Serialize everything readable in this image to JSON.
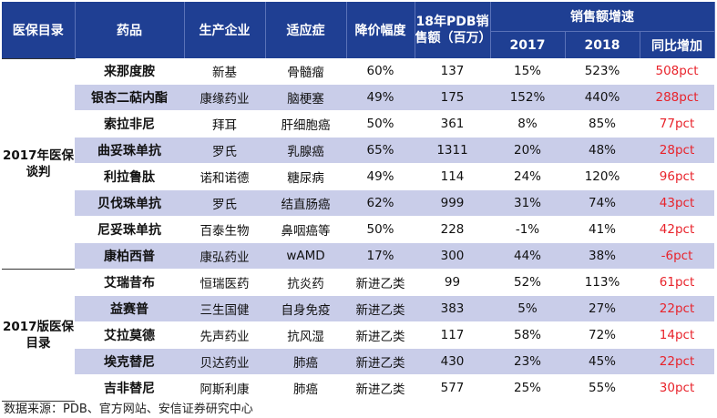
{
  "header": {
    "category": "医保目录",
    "drug": "药品",
    "company": "生产企业",
    "indication": "适应症",
    "price_cut": "降价幅度",
    "sales_line1": "18年PDB销",
    "sales_line2": "售额（百万）",
    "growth_group": "销售额增速",
    "y2017": "2017",
    "y2018": "2018",
    "yoy": "同比增加"
  },
  "groups": [
    {
      "label_line1": "2017年医保",
      "label_line2": "谈判"
    },
    {
      "label_line1": "2017版医保",
      "label_line2": "目录"
    }
  ],
  "rows": [
    {
      "drug": "来那度胺",
      "company": "新基",
      "indication": "骨髓瘤",
      "cut": "60%",
      "sales": "137",
      "g2017": "15%",
      "g2018": "523%",
      "yoy": "508pct"
    },
    {
      "drug": "银杏二萜内酯",
      "company": "康缘药业",
      "indication": "脑梗塞",
      "cut": "49%",
      "sales": "175",
      "g2017": "152%",
      "g2018": "440%",
      "yoy": "288pct"
    },
    {
      "drug": "索拉非尼",
      "company": "拜耳",
      "indication": "肝细胞癌",
      "cut": "50%",
      "sales": "361",
      "g2017": "8%",
      "g2018": "85%",
      "yoy": "77pct"
    },
    {
      "drug": "曲妥珠单抗",
      "company": "罗氏",
      "indication": "乳腺癌",
      "cut": "65%",
      "sales": "1311",
      "g2017": "20%",
      "g2018": "48%",
      "yoy": "28pct"
    },
    {
      "drug": "利拉鲁肽",
      "company": "诺和诺德",
      "indication": "糖尿病",
      "cut": "49%",
      "sales": "114",
      "g2017": "24%",
      "g2018": "120%",
      "yoy": "96pct"
    },
    {
      "drug": "贝伐珠单抗",
      "company": "罗氏",
      "indication": "结直肠癌",
      "cut": "62%",
      "sales": "999",
      "g2017": "31%",
      "g2018": "74%",
      "yoy": "43pct"
    },
    {
      "drug": "尼妥珠单抗",
      "company": "百泰生物",
      "indication": "鼻咽癌等",
      "cut": "50%",
      "sales": "228",
      "g2017": "-1%",
      "g2018": "41%",
      "yoy": "42pct"
    },
    {
      "drug": "康柏西普",
      "company": "康弘药业",
      "indication": "wAMD",
      "cut": "17%",
      "sales": "300",
      "g2017": "44%",
      "g2018": "38%",
      "yoy": "-6pct"
    },
    {
      "drug": "艾瑞昔布",
      "company": "恒瑞医药",
      "indication": "抗炎药",
      "cut": "新进乙类",
      "sales": "99",
      "g2017": "52%",
      "g2018": "113%",
      "yoy": "61pct"
    },
    {
      "drug": "益赛普",
      "company": "三生国健",
      "indication": "自身免疫",
      "cut": "新进乙类",
      "sales": "383",
      "g2017": "5%",
      "g2018": "27%",
      "yoy": "22pct"
    },
    {
      "drug": "艾拉莫德",
      "company": "先声药业",
      "indication": "抗风湿",
      "cut": "新进乙类",
      "sales": "117",
      "g2017": "58%",
      "g2018": "72%",
      "yoy": "14pct"
    },
    {
      "drug": "埃克替尼",
      "company": "贝达药业",
      "indication": "肺癌",
      "cut": "新进乙类",
      "sales": "430",
      "g2017": "23%",
      "g2018": "45%",
      "yoy": "22pct"
    },
    {
      "drug": "吉非替尼",
      "company": "阿斯利康",
      "indication": "肺癌",
      "cut": "新进乙类",
      "sales": "577",
      "g2017": "25%",
      "g2018": "55%",
      "yoy": "30pct"
    }
  ],
  "footer": "数据来源：PDB、官方网站、安信证券研究中心",
  "colors": {
    "header_bg": "#1f3f93",
    "row_shade": "#c9cde9",
    "highlight_red": "#e8232b"
  }
}
